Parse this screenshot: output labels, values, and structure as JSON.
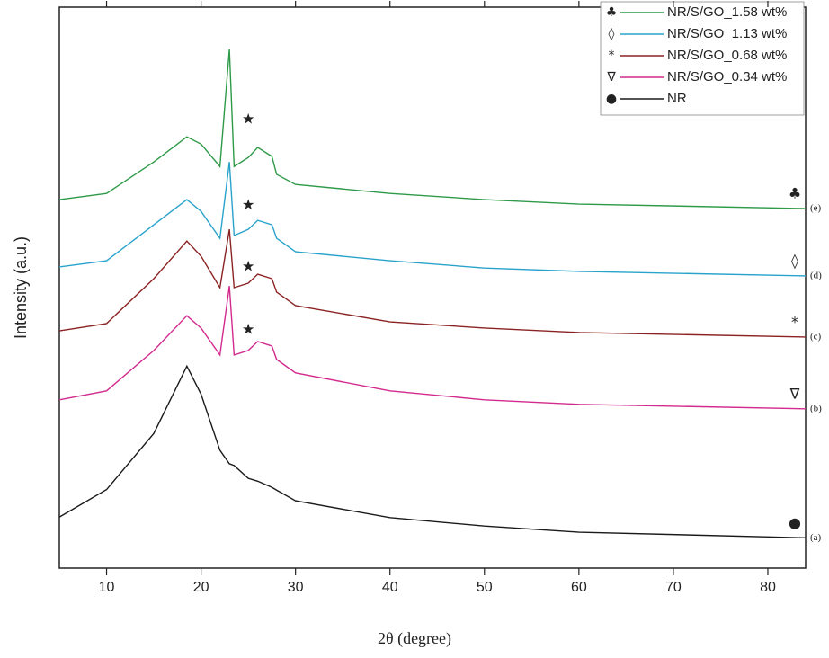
{
  "chart_data": {
    "type": "line",
    "xlabel": "2θ (degree)",
    "ylabel": "Intensity (a.u.)",
    "x": [
      5,
      10,
      15,
      18.5,
      20,
      22,
      23,
      23.5,
      25,
      26,
      27.5,
      28,
      30,
      40,
      50,
      60,
      84
    ],
    "xlim": [
      5,
      84
    ],
    "ylim": [
      0,
      100
    ],
    "xticks": [
      10,
      20,
      30,
      40,
      50,
      60,
      70,
      80
    ],
    "legend": "upper right",
    "series": [
      {
        "name": "NR/S/GO_1.58 wt%",
        "color": "#2e9a48",
        "marker": "♣",
        "tag": "(e)",
        "values": [
          65.7,
          66.8,
          72.4,
          76.9,
          75.6,
          71.6,
          92.5,
          71.6,
          73.2,
          75,
          73.4,
          70.2,
          68.4,
          66.8,
          65.7,
          64.9,
          64.1
        ]
      },
      {
        "name": "NR/S/GO_1.13 wt%",
        "color": "#2aa3cc",
        "marker": "◊",
        "tag": "(d)",
        "values": [
          53.7,
          54.8,
          61.2,
          65.7,
          63.6,
          58.8,
          72.4,
          59.3,
          60.4,
          62,
          61.2,
          58.8,
          56.4,
          54.8,
          53.5,
          52.9,
          52.1
        ]
      },
      {
        "name": "NR/S/GO_0.68 wt%",
        "color": "#8b2323",
        "marker": "*",
        "tag": "(c)",
        "values": [
          42.3,
          43.6,
          51.6,
          58.3,
          55.6,
          50,
          60.4,
          50,
          50.8,
          52.4,
          51.6,
          49.2,
          46.8,
          43.9,
          42.8,
          42,
          41.2
        ]
      },
      {
        "name": "NR/S/GO_0.34 wt%",
        "color": "#d22a8e",
        "marker": "∇",
        "tag": "(b)",
        "values": [
          30,
          31.6,
          38.8,
          45,
          42.8,
          38,
          50.3,
          38,
          38.8,
          40.4,
          39.6,
          37.2,
          34.8,
          31.6,
          30,
          29.2,
          28.4
        ]
      },
      {
        "name": "NR",
        "color": "#1a1a1a",
        "marker": "●",
        "tag": "(a)",
        "values": [
          9.1,
          14,
          24,
          36,
          31,
          21,
          18.6,
          18.3,
          16,
          15.5,
          14.4,
          13.9,
          12,
          9,
          7.5,
          6.4,
          5.4
        ]
      }
    ],
    "annotations": [
      {
        "text": "★",
        "x": 25,
        "y": 80
      },
      {
        "text": "★",
        "x": 25,
        "y": 64.7
      },
      {
        "text": "★",
        "x": 25,
        "y": 53.7
      },
      {
        "text": "★",
        "x": 25,
        "y": 42.5
      }
    ]
  }
}
